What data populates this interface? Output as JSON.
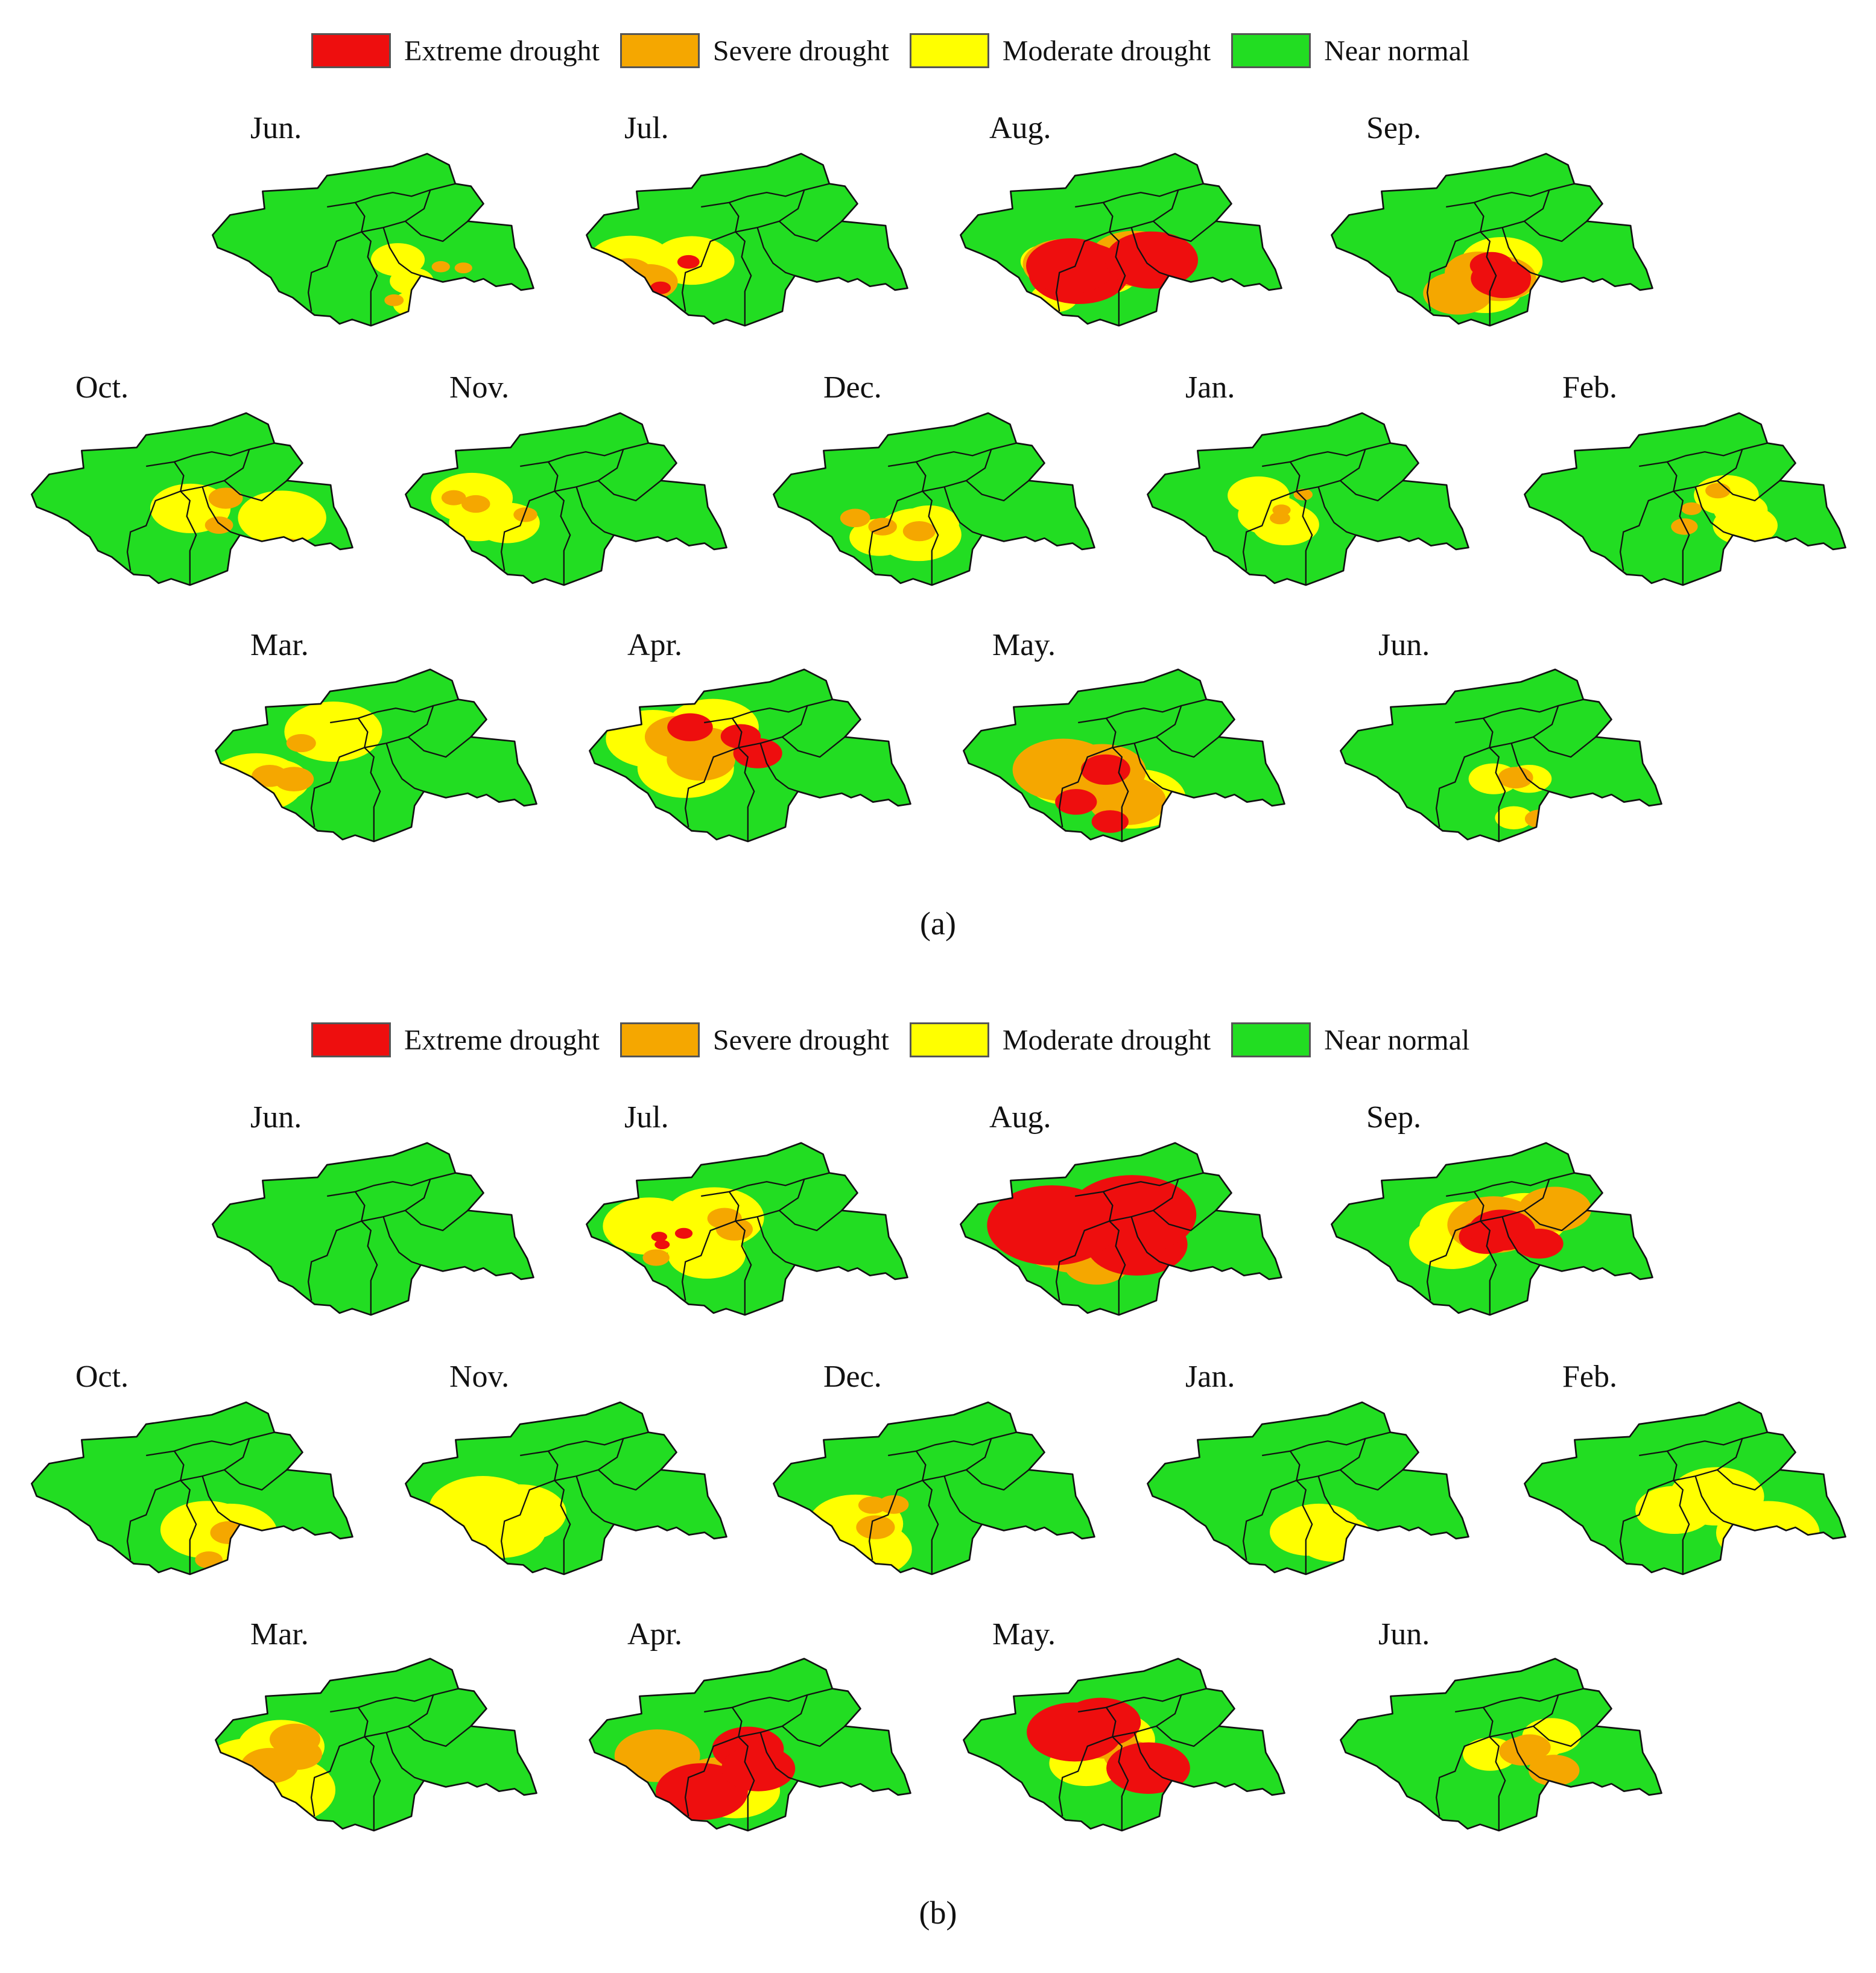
{
  "colors": {
    "extreme": "#ee0e0e",
    "severe": "#f5a700",
    "moderate": "#ffff00",
    "normal": "#22dd22"
  },
  "legend": [
    {
      "label": "Extreme drought",
      "class": "extreme"
    },
    {
      "label": "Severe drought",
      "class": "severe"
    },
    {
      "label": "Moderate drought",
      "class": "moderate"
    },
    {
      "label": "Near normal",
      "class": "normal"
    }
  ],
  "panels": [
    {
      "caption": "(a)",
      "maps": [
        {
          "month": "Jun.",
          "drought": {
            "extreme": 0,
            "severe": 0.02,
            "moderate": 0.12
          }
        },
        {
          "month": "Jul.",
          "drought": {
            "extreme": 0.02,
            "severe": 0.12,
            "moderate": 0.28
          }
        },
        {
          "month": "Aug.",
          "drought": {
            "extreme": 0.35,
            "severe": 0.35,
            "moderate": 0.15
          }
        },
        {
          "month": "Sep.",
          "drought": {
            "extreme": 0.12,
            "severe": 0.25,
            "moderate": 0.35
          }
        },
        {
          "month": "Oct.",
          "drought": {
            "extreme": 0,
            "severe": 0.04,
            "moderate": 0.25
          }
        },
        {
          "month": "Nov.",
          "drought": {
            "extreme": 0,
            "severe": 0.03,
            "moderate": 0.22
          }
        },
        {
          "month": "Dec.",
          "drought": {
            "extreme": 0,
            "severe": 0.04,
            "moderate": 0.25
          }
        },
        {
          "month": "Jan.",
          "drought": {
            "extreme": 0,
            "severe": 0.02,
            "moderate": 0.15
          }
        },
        {
          "month": "Feb.",
          "drought": {
            "extreme": 0,
            "severe": 0.03,
            "moderate": 0.15
          }
        },
        {
          "month": "Mar.",
          "drought": {
            "extreme": 0,
            "severe": 0.06,
            "moderate": 0.35
          }
        },
        {
          "month": "Apr.",
          "drought": {
            "extreme": 0.08,
            "severe": 0.22,
            "moderate": 0.35
          }
        },
        {
          "month": "May.",
          "drought": {
            "extreme": 0.08,
            "severe": 0.35,
            "moderate": 0.35
          }
        },
        {
          "month": "Jun.",
          "drought": {
            "extreme": 0,
            "severe": 0.04,
            "moderate": 0.1
          }
        }
      ]
    },
    {
      "caption": "(b)",
      "maps": [
        {
          "month": "Jun.",
          "drought": {
            "extreme": 0,
            "severe": 0,
            "moderate": 0
          }
        },
        {
          "month": "Jul.",
          "drought": {
            "extreme": 0.01,
            "severe": 0.05,
            "moderate": 0.4
          }
        },
        {
          "month": "Aug.",
          "drought": {
            "extreme": 0.6,
            "severe": 0.25,
            "moderate": 0.1
          }
        },
        {
          "month": "Sep.",
          "drought": {
            "extreme": 0.15,
            "severe": 0.35,
            "moderate": 0.35
          }
        },
        {
          "month": "Oct.",
          "drought": {
            "extreme": 0,
            "severe": 0.05,
            "moderate": 0.45
          }
        },
        {
          "month": "Nov.",
          "drought": {
            "extreme": 0,
            "severe": 0,
            "moderate": 0.45
          }
        },
        {
          "month": "Dec.",
          "drought": {
            "extreme": 0,
            "severe": 0.05,
            "moderate": 0.45
          }
        },
        {
          "month": "Jan.",
          "drought": {
            "extreme": 0,
            "severe": 0,
            "moderate": 0.4
          }
        },
        {
          "month": "Feb.",
          "drought": {
            "extreme": 0,
            "severe": 0,
            "moderate": 0.35
          }
        },
        {
          "month": "Mar.",
          "drought": {
            "extreme": 0,
            "severe": 0.15,
            "moderate": 0.45
          }
        },
        {
          "month": "Apr.",
          "drought": {
            "extreme": 0.35,
            "severe": 0.3,
            "moderate": 0.3
          }
        },
        {
          "month": "May.",
          "drought": {
            "extreme": 0.35,
            "severe": 0.15,
            "moderate": 0.35
          }
        },
        {
          "month": "Jun.",
          "drought": {
            "extreme": 0,
            "severe": 0.1,
            "moderate": 0.15
          }
        }
      ]
    }
  ]
}
